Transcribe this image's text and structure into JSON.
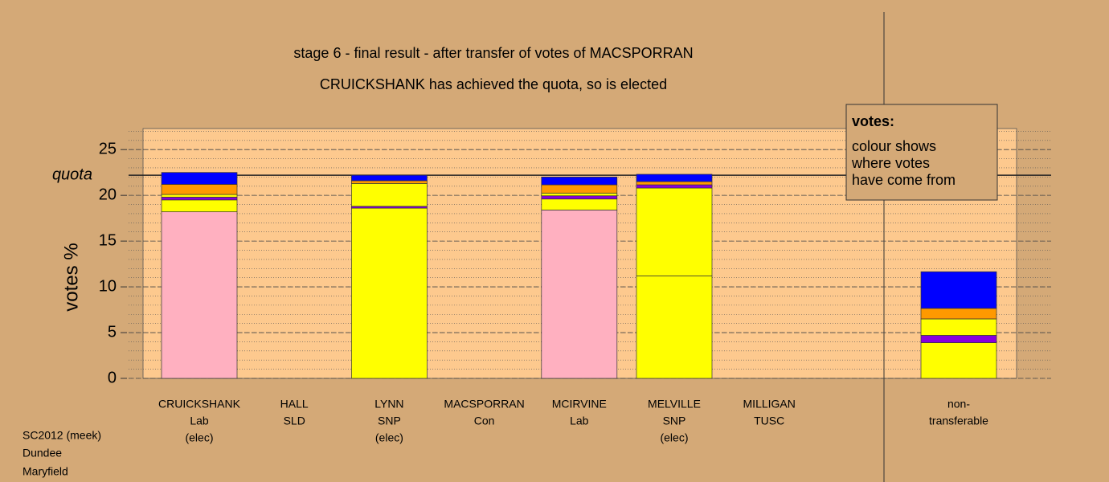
{
  "chart_data": {
    "type": "stacked-bar",
    "title": "stage 6 - final result - after transfer of votes of MACSPORRAN",
    "subtitle": "CRUICKSHANK has achieved the quota, so is elected",
    "y_label": "votes %",
    "ylim": [
      0,
      27.3
    ],
    "yticks": [
      0,
      5,
      10,
      15,
      20,
      25
    ],
    "grid": true,
    "minor_grid": true,
    "quota": {
      "label": "quota",
      "value": 22.2
    },
    "bars": [
      {
        "label": [
          "CRUICKSHANK",
          "Lab",
          "(elec)"
        ],
        "segments": [
          {
            "value": 18.2,
            "color": "#ffb0c0"
          },
          {
            "value": 1.3,
            "color": "#ffff00"
          },
          {
            "value": 0.3,
            "color": "#8800dd"
          },
          {
            "value": 0.3,
            "color": "#ffff00"
          },
          {
            "value": 1.1,
            "color": "#ff9900"
          },
          {
            "value": 1.3,
            "color": "#0000ff"
          }
        ]
      },
      {
        "label": [
          "HALL",
          "SLD"
        ],
        "segments": []
      },
      {
        "label": [
          "LYNN",
          "SNP",
          "(elec)"
        ],
        "segments": [
          {
            "value": 18.6,
            "color": "#ffff00"
          },
          {
            "value": 0.2,
            "color": "#8800dd"
          },
          {
            "value": 2.5,
            "color": "#ffff00"
          },
          {
            "value": 0.3,
            "color": "#ff9900"
          },
          {
            "value": 0.6,
            "color": "#0000ff"
          }
        ]
      },
      {
        "label": [
          "MACSPORRAN",
          "Con"
        ],
        "segments": []
      },
      {
        "label": [
          "MCIRVINE",
          "Lab"
        ],
        "segments": [
          {
            "value": 18.4,
            "color": "#ffb0c0"
          },
          {
            "value": 1.2,
            "color": "#ffff00"
          },
          {
            "value": 0.35,
            "color": "#8800dd"
          },
          {
            "value": 0.3,
            "color": "#ffff00"
          },
          {
            "value": 0.9,
            "color": "#ff9900"
          },
          {
            "value": 0.85,
            "color": "#0000ff"
          }
        ]
      },
      {
        "label": [
          "MELVILLE",
          "SNP",
          "(elec)"
        ],
        "segments": [
          {
            "value": 11.2,
            "color": "#ffff00"
          },
          {
            "value": 9.6,
            "color": "#ffff00"
          },
          {
            "value": 0.35,
            "color": "#8800dd"
          },
          {
            "value": 0.35,
            "color": "#ff9900"
          },
          {
            "value": 0.8,
            "color": "#0000ff"
          }
        ]
      },
      {
        "label": [
          "MILLIGAN",
          "TUSC"
        ],
        "segments": []
      }
    ],
    "nontransferable": {
      "label": [
        "non-",
        "transferable"
      ],
      "segments": [
        {
          "value": 3.9,
          "color": "#ffff00"
        },
        {
          "value": 0.8,
          "color": "#8800dd"
        },
        {
          "value": 1.8,
          "color": "#ffff00"
        },
        {
          "value": 1.15,
          "color": "#ff9900"
        },
        {
          "value": 4.0,
          "color": "#0000ff"
        }
      ]
    },
    "note": {
      "heading": "votes:",
      "lines": [
        "colour shows",
        "where votes",
        "have come from"
      ]
    },
    "footer": [
      "SC2012 (meek)",
      "Dundee",
      "Maryfield"
    ]
  }
}
